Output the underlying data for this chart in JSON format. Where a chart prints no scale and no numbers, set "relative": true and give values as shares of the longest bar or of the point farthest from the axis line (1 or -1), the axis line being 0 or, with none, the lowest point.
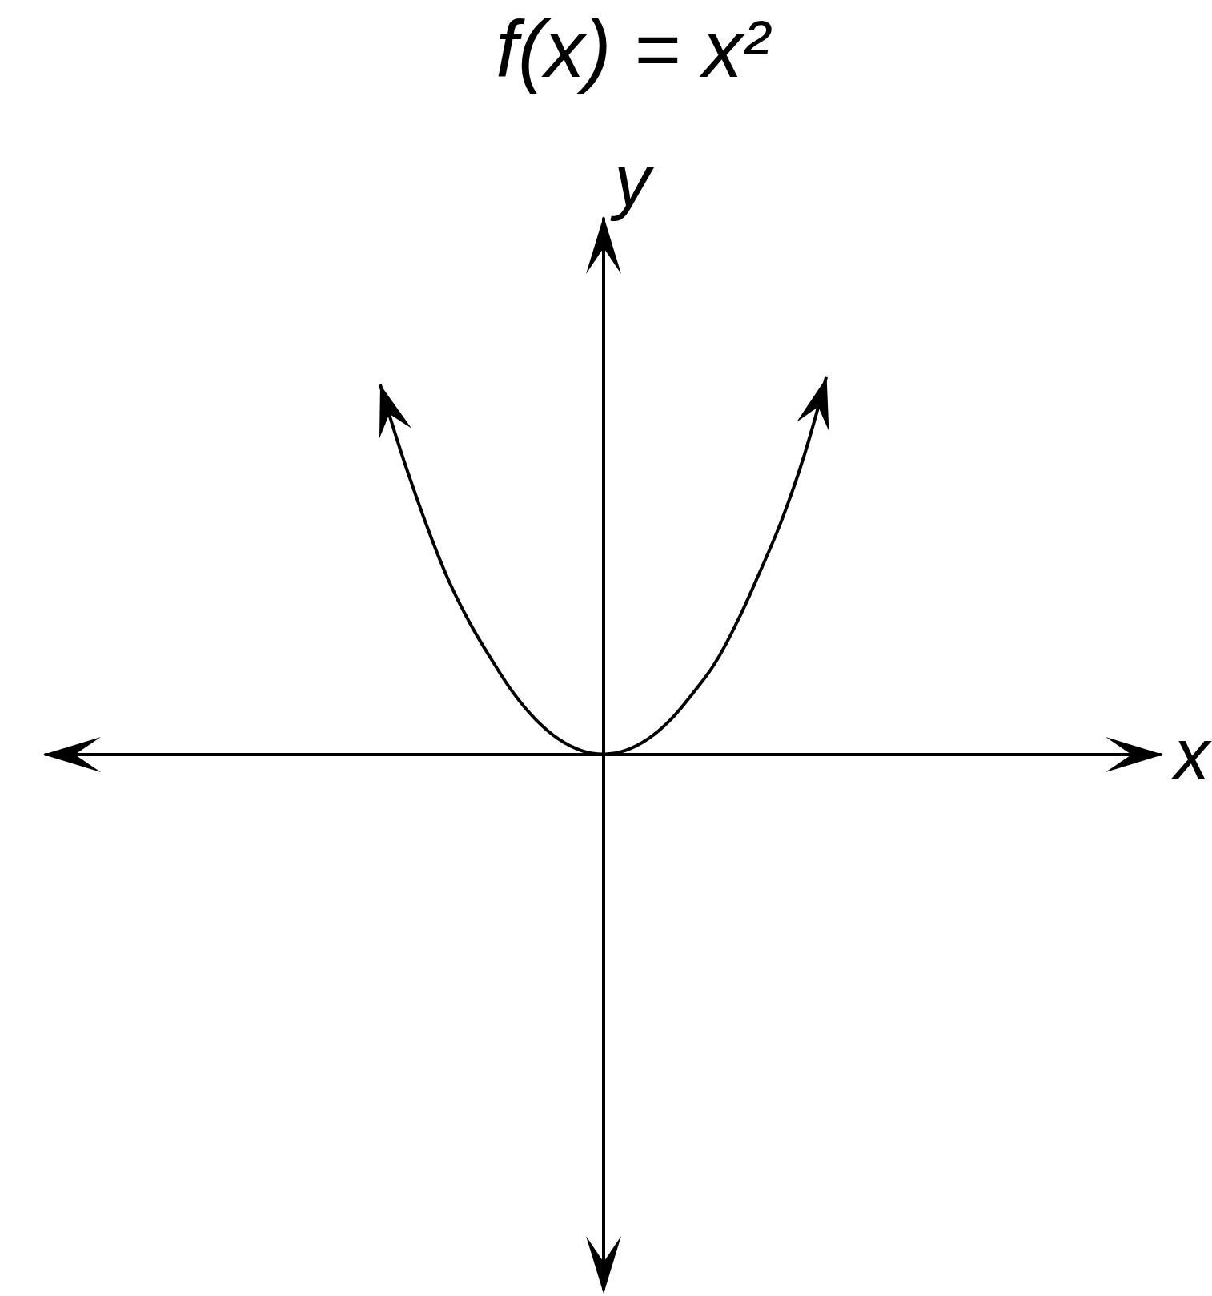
{
  "chart_data": {
    "type": "line",
    "title": "f(x) = x²",
    "xlabel": "x",
    "ylabel": "y",
    "relative": true,
    "color": "#000000",
    "categories": [
      null,
      null,
      null,
      null,
      null,
      null,
      null,
      null,
      null,
      null,
      null,
      null,
      null,
      null,
      null,
      null,
      null,
      null,
      null,
      null,
      null,
      null,
      null,
      null,
      null,
      null,
      null,
      null,
      null,
      null,
      null,
      null,
      null,
      null,
      null,
      null,
      null,
      null,
      null,
      null,
      null,
      null,
      null,
      null,
      null,
      null,
      null,
      null,
      null,
      null,
      null
    ],
    "values": [
      null,
      null,
      null,
      null,
      null,
      null,
      null,
      null,
      null,
      null,
      null,
      null,
      null,
      null,
      null,
      0.98,
      0.79,
      0.62,
      0.47,
      0.35,
      0.25,
      0.16,
      0.09,
      0.04,
      0.01,
      0,
      0.01,
      0.04,
      0.09,
      0.16,
      0.24,
      0.35,
      0.48,
      0.62,
      0.79,
      1,
      null,
      null,
      null,
      null,
      null,
      null,
      null,
      null,
      null,
      null,
      null,
      null,
      null,
      null,
      null
    ]
  }
}
